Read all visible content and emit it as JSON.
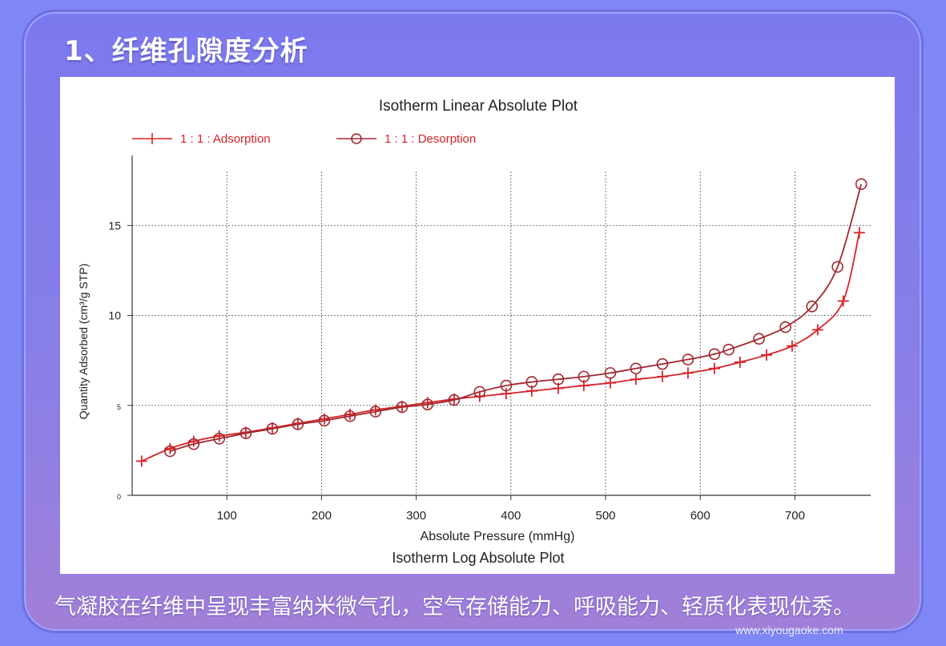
{
  "header": {
    "title": "1、纤维孔隙度分析"
  },
  "caption": "气凝胶在纤维中呈现丰富纳米微气孔，空气存储能力、呼吸能力、轻质化表现优秀。",
  "watermark": "www.xiyougaoke.com",
  "colors": {
    "background": "#7f86f6",
    "adsorption": "#d8232a",
    "desorption": "#a0282f",
    "grid": "#555555"
  },
  "chart_data": {
    "type": "line",
    "title": "Isotherm Linear Absolute Plot",
    "subtitle": "Isotherm Log Absolute Plot",
    "xlabel": "Absolute Pressure (mmHg)",
    "ylabel": "Quantity Adsorbed (cm³/g STP)",
    "xlim": [
      0,
      780
    ],
    "ylim": [
      0,
      18
    ],
    "x_ticks": [
      100,
      200,
      300,
      400,
      500,
      600,
      700
    ],
    "y_ticks": [
      {
        "value": 0,
        "label": "0"
      },
      {
        "value": 5,
        "label": "5"
      },
      {
        "value": 10,
        "label": "10"
      },
      {
        "value": 15,
        "label": "15"
      }
    ],
    "grid": true,
    "legend_position": "top-left",
    "series": [
      {
        "name": "1 : 1 : Adsorption",
        "marker": "plus",
        "x": [
          10,
          40,
          65,
          92,
          120,
          148,
          175,
          203,
          230,
          257,
          285,
          312,
          340,
          367,
          395,
          422,
          450,
          477,
          505,
          532,
          560,
          587,
          615,
          642,
          670,
          697,
          724,
          751,
          768
        ],
        "y": [
          1.9,
          2.6,
          3.0,
          3.3,
          3.5,
          3.75,
          4.0,
          4.25,
          4.5,
          4.75,
          4.95,
          5.15,
          5.35,
          5.5,
          5.65,
          5.8,
          5.95,
          6.1,
          6.25,
          6.45,
          6.6,
          6.8,
          7.05,
          7.4,
          7.8,
          8.3,
          9.2,
          10.8,
          14.6
        ]
      },
      {
        "name": "1 : 1 : Desorption",
        "marker": "circle",
        "x": [
          40,
          65,
          92,
          120,
          148,
          175,
          203,
          230,
          257,
          285,
          312,
          340,
          367,
          395,
          422,
          450,
          477,
          505,
          532,
          560,
          587,
          615,
          630,
          662,
          690,
          718,
          745,
          770
        ],
        "y": [
          2.45,
          2.85,
          3.15,
          3.45,
          3.7,
          3.95,
          4.15,
          4.4,
          4.65,
          4.9,
          5.05,
          5.3,
          5.75,
          6.1,
          6.3,
          6.45,
          6.6,
          6.8,
          7.05,
          7.3,
          7.55,
          7.85,
          8.1,
          8.7,
          9.35,
          10.5,
          12.7,
          17.3
        ]
      }
    ]
  }
}
